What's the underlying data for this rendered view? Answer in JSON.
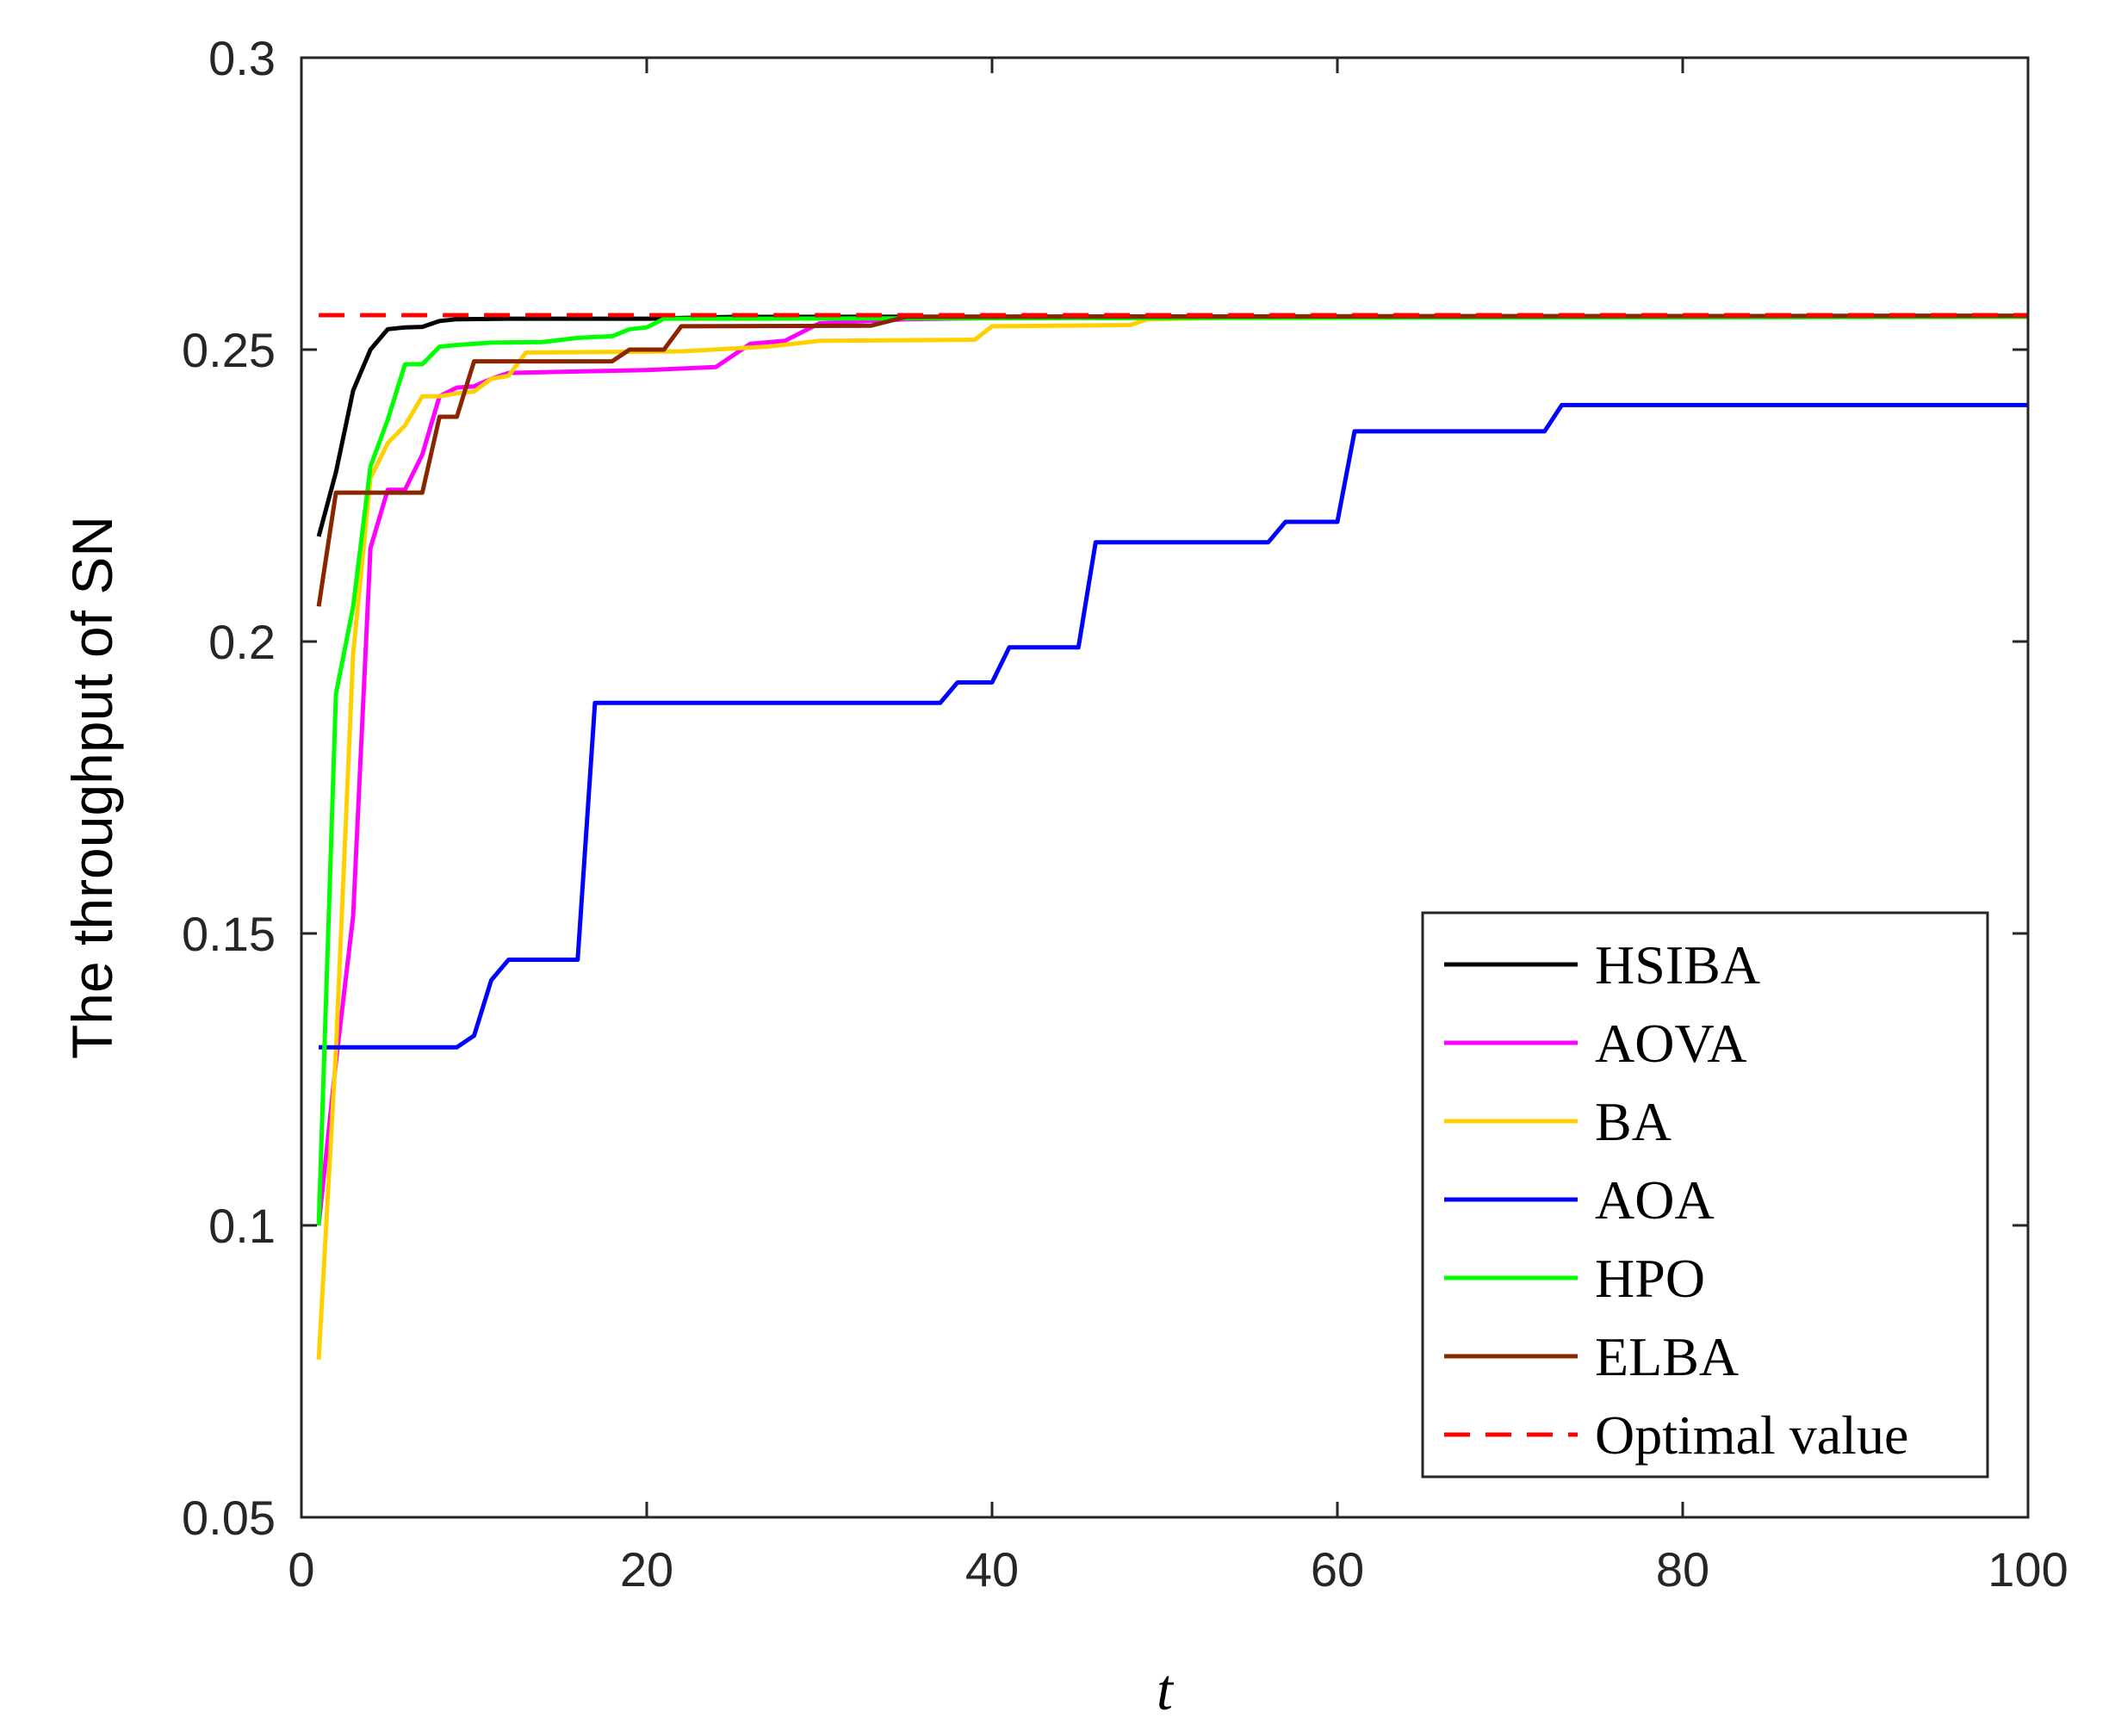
{
  "chart_data": {
    "type": "line",
    "xlabel": "t",
    "ylabel": "The throughput of SN",
    "xlim": [
      0,
      100
    ],
    "ylim": [
      0.05,
      0.3
    ],
    "xticks": [
      "0",
      "20",
      "40",
      "60",
      "80",
      "100"
    ],
    "yticks": [
      "0.05",
      "0.1",
      "0.15",
      "0.2",
      "0.25",
      "0.3"
    ],
    "legend_position": "bottom-right",
    "grid": false,
    "series": [
      {
        "name": "HSIBA",
        "color": "#000000",
        "dashed": false,
        "points": [
          [
            1,
            0.218
          ],
          [
            2,
            0.229
          ],
          [
            3,
            0.243
          ],
          [
            4,
            0.25
          ],
          [
            5,
            0.2535
          ],
          [
            6,
            0.2538
          ],
          [
            7,
            0.2539
          ],
          [
            8,
            0.2549
          ],
          [
            9,
            0.2552
          ],
          [
            12,
            0.2553
          ],
          [
            20,
            0.2553
          ],
          [
            25,
            0.2556
          ],
          [
            100,
            0.2558
          ]
        ]
      },
      {
        "name": "AOVA",
        "color": "#ff00ff",
        "dashed": false,
        "points": [
          [
            1,
            0.1
          ],
          [
            2,
            0.128
          ],
          [
            3,
            0.153
          ],
          [
            4,
            0.216
          ],
          [
            5,
            0.226
          ],
          [
            6,
            0.226
          ],
          [
            7,
            0.232
          ],
          [
            8,
            0.242
          ],
          [
            9,
            0.2435
          ],
          [
            10,
            0.2437
          ],
          [
            11,
            0.245
          ],
          [
            12,
            0.246
          ],
          [
            20,
            0.2465
          ],
          [
            24,
            0.247
          ],
          [
            26,
            0.251
          ],
          [
            28,
            0.2515
          ],
          [
            30,
            0.2545
          ],
          [
            35,
            0.2552
          ],
          [
            45,
            0.2556
          ],
          [
            100,
            0.2558
          ]
        ]
      },
      {
        "name": "BA",
        "color": "#ffd000",
        "dashed": false,
        "points": [
          [
            1,
            0.077
          ],
          [
            2,
            0.13
          ],
          [
            3,
            0.198
          ],
          [
            4,
            0.228
          ],
          [
            5,
            0.234
          ],
          [
            6,
            0.237
          ],
          [
            7,
            0.242
          ],
          [
            8,
            0.242
          ],
          [
            9,
            0.2425
          ],
          [
            10,
            0.2428
          ],
          [
            11,
            0.245
          ],
          [
            12,
            0.2455
          ],
          [
            13,
            0.2495
          ],
          [
            22,
            0.2497
          ],
          [
            27,
            0.2505
          ],
          [
            30,
            0.2515
          ],
          [
            39,
            0.2517
          ],
          [
            40,
            0.254
          ],
          [
            48,
            0.2542
          ],
          [
            49,
            0.2552
          ],
          [
            56,
            0.2556
          ],
          [
            100,
            0.2558
          ]
        ]
      },
      {
        "name": "AOA",
        "color": "#0000ff",
        "dashed": false,
        "points": [
          [
            1,
            0.1305
          ],
          [
            9,
            0.1305
          ],
          [
            10,
            0.1325
          ],
          [
            11,
            0.142
          ],
          [
            12,
            0.1455
          ],
          [
            16,
            0.1455
          ],
          [
            17,
            0.1895
          ],
          [
            37,
            0.1895
          ],
          [
            38,
            0.193
          ],
          [
            40,
            0.193
          ],
          [
            41,
            0.199
          ],
          [
            45,
            0.199
          ],
          [
            46,
            0.217
          ],
          [
            56,
            0.217
          ],
          [
            57,
            0.2205
          ],
          [
            60,
            0.2205
          ],
          [
            61,
            0.236
          ],
          [
            72,
            0.236
          ],
          [
            73,
            0.2405
          ],
          [
            100,
            0.2405
          ]
        ]
      },
      {
        "name": "HPO",
        "color": "#00ff00",
        "dashed": false,
        "points": [
          [
            1,
            0.1
          ],
          [
            2,
            0.191
          ],
          [
            3,
            0.206
          ],
          [
            4,
            0.23
          ],
          [
            5,
            0.238
          ],
          [
            6,
            0.2475
          ],
          [
            7,
            0.2475
          ],
          [
            8,
            0.2505
          ],
          [
            9,
            0.2508
          ],
          [
            11,
            0.2512
          ],
          [
            14,
            0.2513
          ],
          [
            16,
            0.252
          ],
          [
            18,
            0.2523
          ],
          [
            19,
            0.2535
          ],
          [
            20,
            0.2538
          ],
          [
            21,
            0.2553
          ],
          [
            100,
            0.2556
          ]
        ]
      },
      {
        "name": "ELBA",
        "color": "#8b2500",
        "dashed": false,
        "points": [
          [
            1,
            0.206
          ],
          [
            2,
            0.2255
          ],
          [
            7,
            0.2255
          ],
          [
            8,
            0.2385
          ],
          [
            9,
            0.2385
          ],
          [
            10,
            0.248
          ],
          [
            18,
            0.248
          ],
          [
            19,
            0.25
          ],
          [
            21,
            0.25
          ],
          [
            22,
            0.254
          ],
          [
            33,
            0.2541
          ],
          [
            35,
            0.2556
          ],
          [
            100,
            0.2558
          ]
        ]
      },
      {
        "name": "Optimal value",
        "color": "#ff0000",
        "dashed": true,
        "points": [
          [
            1,
            0.2559
          ],
          [
            100,
            0.2559
          ]
        ]
      }
    ]
  }
}
